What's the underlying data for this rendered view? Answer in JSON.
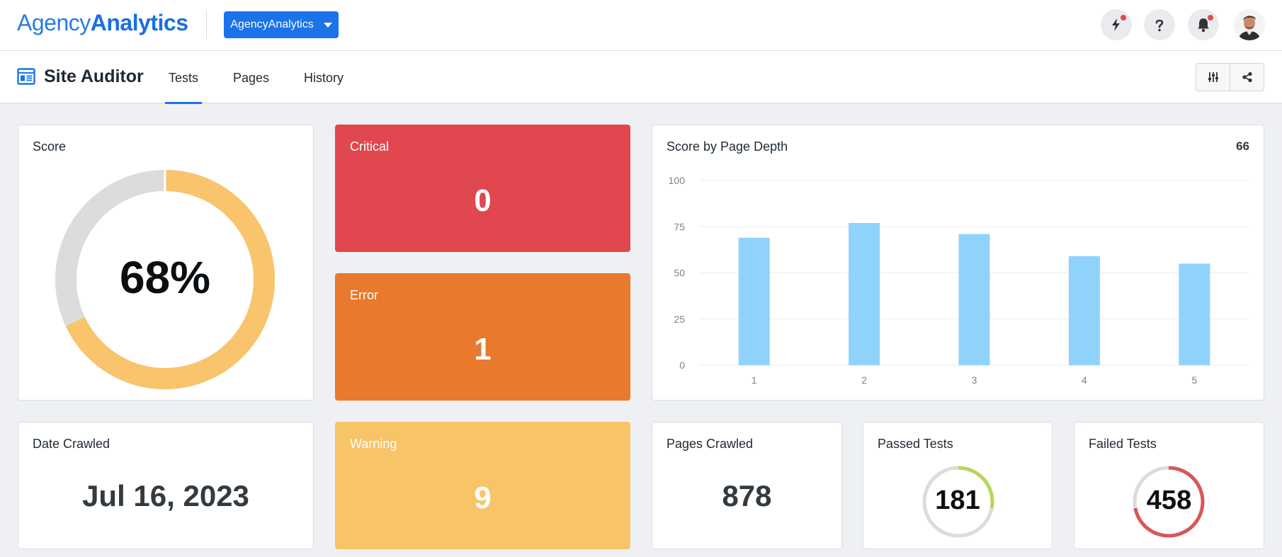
{
  "brand": {
    "logo_light": "Agency",
    "logo_bold": "Analytics"
  },
  "header": {
    "account_label": "AgencyAnalytics",
    "icons": [
      "lightning-icon",
      "help-icon",
      "bell-icon",
      "user-avatar"
    ]
  },
  "subheader": {
    "title": "Site Auditor",
    "tabs": [
      {
        "label": "Tests",
        "active": true
      },
      {
        "label": "Pages",
        "active": false
      },
      {
        "label": "History",
        "active": false
      }
    ]
  },
  "score": {
    "label": "Score",
    "value": "68%",
    "fraction": 0.68,
    "color": "#f9c46b",
    "track_color": "#dcdcdc"
  },
  "critical": {
    "label": "Critical",
    "value": "0",
    "color": "#e0474e"
  },
  "error": {
    "label": "Error",
    "value": "1",
    "color": "#e8792d"
  },
  "warning": {
    "label": "Warning",
    "value": "9",
    "color": "#f8c468"
  },
  "depth_chart": {
    "title": "Score by Page Depth",
    "total": "66"
  },
  "chart_data": {
    "type": "bar",
    "title": "Score by Page Depth",
    "categories": [
      "1",
      "2",
      "3",
      "4",
      "5"
    ],
    "values": [
      69,
      77,
      71,
      59,
      55
    ],
    "yticks": [
      "100",
      "75",
      "50",
      "25",
      "0"
    ],
    "ylim": [
      0,
      100
    ],
    "bar_color": "#8fd3fd",
    "grid": true
  },
  "date_crawled": {
    "label": "Date Crawled",
    "value": "Jul 16, 2023"
  },
  "pages_crawled": {
    "label": "Pages Crawled",
    "value": "878"
  },
  "passed_tests": {
    "label": "Passed Tests",
    "value": "181",
    "fraction": 0.28,
    "color": "#b7d65a"
  },
  "failed_tests": {
    "label": "Failed Tests",
    "value": "458",
    "fraction": 0.72,
    "color": "#d95757"
  }
}
